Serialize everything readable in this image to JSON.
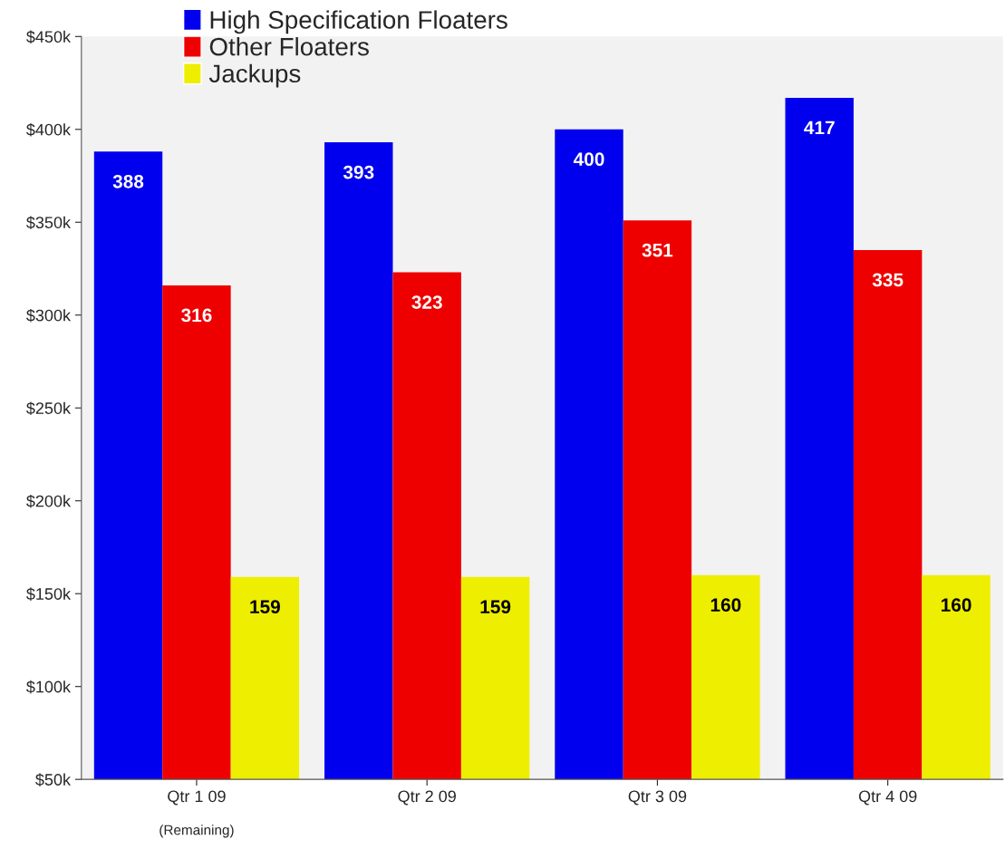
{
  "chart_data": {
    "type": "bar",
    "categories": [
      "Qtr 1 09",
      "Qtr 2 09",
      "Qtr 3 09",
      "Qtr 4 09"
    ],
    "series": [
      {
        "name": "High Specification Floaters",
        "color": "#0000ee",
        "values": [
          388,
          393,
          400,
          417
        ]
      },
      {
        "name": "Other Floaters",
        "color": "#ee0000",
        "values": [
          316,
          323,
          351,
          335
        ]
      },
      {
        "name": "Jackups",
        "color": "#eeee00",
        "values": [
          159,
          159,
          160,
          160
        ]
      }
    ],
    "ylim": [
      50,
      450
    ],
    "yticks": [
      {
        "value": 50,
        "label": "$50k"
      },
      {
        "value": 100,
        "label": "$100k"
      },
      {
        "value": 150,
        "label": "$150k"
      },
      {
        "value": 200,
        "label": "$200k"
      },
      {
        "value": 250,
        "label": "$250k"
      },
      {
        "value": 300,
        "label": "$300k"
      },
      {
        "value": 350,
        "label": "$350k"
      },
      {
        "value": 400,
        "label": "$400k"
      },
      {
        "value": 450,
        "label": "$450k"
      }
    ],
    "data_labels": true,
    "grid": false,
    "legend": "top left",
    "annotations": [
      "(Remaining)"
    ]
  }
}
